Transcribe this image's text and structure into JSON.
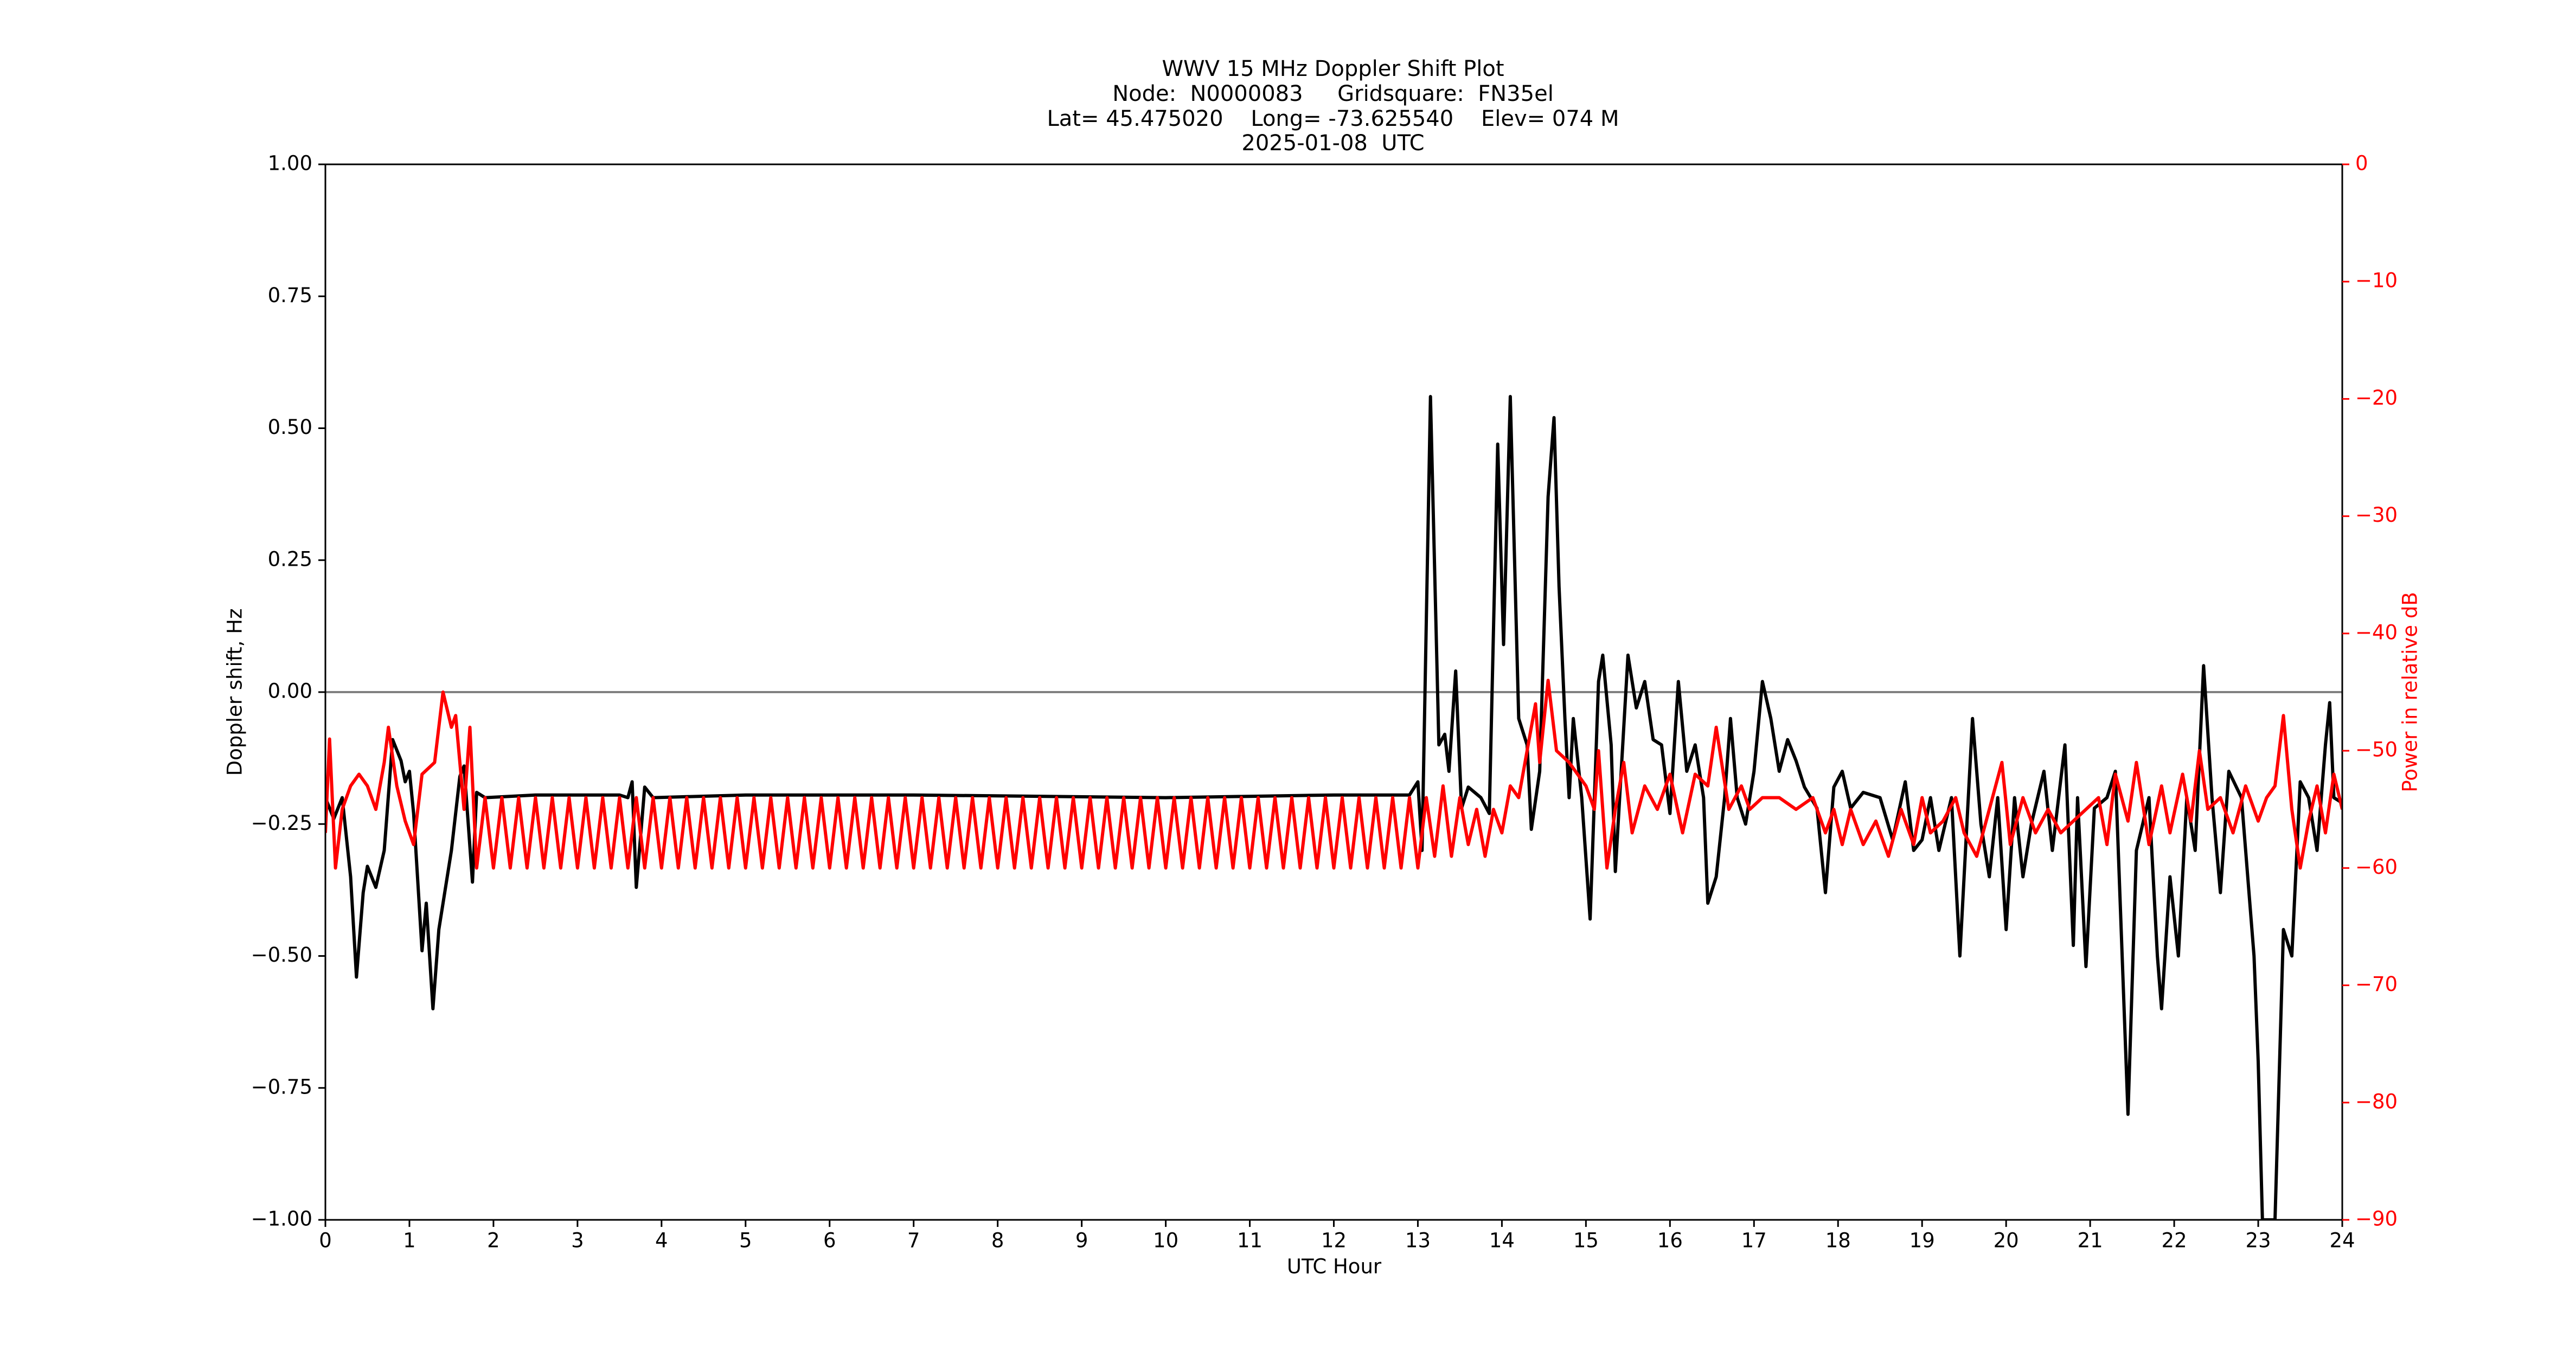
{
  "chart_data": {
    "type": "line",
    "title": "WWV 15 MHz Doppler Shift Plot",
    "subtitle": [
      "Node:  N0000083     Gridsquare:  FN35el",
      "Lat= 45.475020    Long= -73.625540    Elev= 074 M",
      "2025-01-08  UTC"
    ],
    "xlabel": "UTC Hour",
    "ylabel": "Doppler shift, Hz",
    "y2label": "Power in relative dB",
    "xlim": [
      0,
      24
    ],
    "xticks": [
      0,
      1,
      2,
      3,
      4,
      5,
      6,
      7,
      8,
      9,
      10,
      11,
      12,
      13,
      14,
      15,
      16,
      17,
      18,
      19,
      20,
      21,
      22,
      23,
      24
    ],
    "ylim": [
      -1,
      1
    ],
    "yticks": [
      {
        "value": -1,
        "label": "−1.00"
      },
      {
        "value": -0.75,
        "label": "−0.75"
      },
      {
        "value": -0.5,
        "label": "−0.50"
      },
      {
        "value": -0.25,
        "label": "−0.25"
      },
      {
        "value": 0,
        "label": "0.00"
      },
      {
        "value": 0.25,
        "label": "0.25"
      },
      {
        "value": 0.5,
        "label": "0.50"
      },
      {
        "value": 0.75,
        "label": "0.75"
      },
      {
        "value": 1,
        "label": "1.00"
      }
    ],
    "y2lim": [
      -90,
      0
    ],
    "y2ticks": [
      {
        "value": -90,
        "label": "−90"
      },
      {
        "value": -80,
        "label": "−80"
      },
      {
        "value": -70,
        "label": "−70"
      },
      {
        "value": -60,
        "label": "−60"
      },
      {
        "value": -50,
        "label": "−50"
      },
      {
        "value": -40,
        "label": "−40"
      },
      {
        "value": -30,
        "label": "−30"
      },
      {
        "value": -20,
        "label": "−20"
      },
      {
        "value": -10,
        "label": "−10"
      },
      0
    ],
    "y2color": "#ff0000",
    "reference_line": {
      "value": 0,
      "color": "#808080"
    },
    "series": [
      {
        "color": "#000000",
        "axis": "y",
        "x": [
          0,
          0.1,
          0.2,
          0.3,
          0.37,
          0.45,
          0.5,
          0.6,
          0.7,
          0.8,
          0.9,
          0.95,
          1.0,
          1.05,
          1.15,
          1.2,
          1.28,
          1.35,
          1.5,
          1.6,
          1.65,
          1.75,
          1.8,
          1.9,
          2.5,
          3.0,
          3.5,
          3.6,
          3.65,
          3.7,
          3.8,
          3.9,
          5,
          7,
          10,
          12,
          12.9,
          13.0,
          13.05,
          13.15,
          13.25,
          13.32,
          13.37,
          13.45,
          13.52,
          13.6,
          13.75,
          13.85,
          13.95,
          14.02,
          14.1,
          14.2,
          14.3,
          14.35,
          14.45,
          14.55,
          14.62,
          14.68,
          14.75,
          14.8,
          14.85,
          14.95,
          15.05,
          15.15,
          15.2,
          15.3,
          15.35,
          15.5,
          15.6,
          15.7,
          15.8,
          15.9,
          16.0,
          16.1,
          16.2,
          16.3,
          16.4,
          16.45,
          16.55,
          16.65,
          16.72,
          16.8,
          16.9,
          17.0,
          17.1,
          17.2,
          17.3,
          17.4,
          17.5,
          17.6,
          17.75,
          17.85,
          17.95,
          18.05,
          18.15,
          18.3,
          18.5,
          18.65,
          18.8,
          18.9,
          19.0,
          19.1,
          19.2,
          19.35,
          19.45,
          19.6,
          19.7,
          19.8,
          19.9,
          20.0,
          20.1,
          20.2,
          20.3,
          20.45,
          20.55,
          20.7,
          20.8,
          20.85,
          20.95,
          21.05,
          21.2,
          21.3,
          21.45,
          21.55,
          21.7,
          21.8,
          21.85,
          21.95,
          22.05,
          22.15,
          22.25,
          22.35,
          22.45,
          22.55,
          22.65,
          22.8,
          22.95,
          23.0,
          23.05,
          23.2,
          23.3,
          23.4,
          23.5,
          23.6,
          23.7,
          23.8,
          23.85,
          23.9,
          24.0
        ],
        "values": [
          -0.2,
          -0.24,
          -0.2,
          -0.35,
          -0.54,
          -0.38,
          -0.33,
          -0.37,
          -0.3,
          -0.09,
          -0.13,
          -0.17,
          -0.15,
          -0.23,
          -0.49,
          -0.4,
          -0.6,
          -0.45,
          -0.3,
          -0.16,
          -0.14,
          -0.36,
          -0.19,
          -0.2,
          -0.195,
          -0.195,
          -0.195,
          -0.2,
          -0.17,
          -0.37,
          -0.18,
          -0.2,
          -0.195,
          -0.195,
          -0.2,
          -0.195,
          -0.195,
          -0.17,
          -0.3,
          0.56,
          -0.1,
          -0.08,
          -0.15,
          0.04,
          -0.22,
          -0.18,
          -0.2,
          -0.23,
          0.47,
          0.09,
          0.56,
          -0.05,
          -0.1,
          -0.26,
          -0.15,
          0.37,
          0.52,
          0.2,
          -0.05,
          -0.2,
          -0.05,
          -0.2,
          -0.43,
          0.02,
          0.07,
          -0.1,
          -0.34,
          0.07,
          -0.03,
          0.02,
          -0.09,
          -0.1,
          -0.23,
          0.02,
          -0.15,
          -0.1,
          -0.2,
          -0.4,
          -0.35,
          -0.2,
          -0.05,
          -0.2,
          -0.25,
          -0.15,
          0.02,
          -0.05,
          -0.15,
          -0.09,
          -0.13,
          -0.18,
          -0.22,
          -0.38,
          -0.18,
          -0.15,
          -0.22,
          -0.19,
          -0.2,
          -0.28,
          -0.17,
          -0.3,
          -0.28,
          -0.2,
          -0.3,
          -0.2,
          -0.5,
          -0.05,
          -0.25,
          -0.35,
          -0.2,
          -0.45,
          -0.2,
          -0.35,
          -0.25,
          -0.15,
          -0.3,
          -0.1,
          -0.48,
          -0.2,
          -0.52,
          -0.22,
          -0.2,
          -0.15,
          -0.8,
          -0.3,
          -0.2,
          -0.5,
          -0.6,
          -0.35,
          -0.5,
          -0.2,
          -0.3,
          0.05,
          -0.2,
          -0.38,
          -0.15,
          -0.2,
          -0.5,
          -0.7,
          -1.0,
          -1.0,
          -0.45,
          -0.5,
          -0.17,
          -0.2,
          -0.3,
          -0.1,
          -0.02,
          -0.2,
          -0.21
        ]
      },
      {
        "color": "#ff0000",
        "axis": "y2",
        "x": [
          0,
          0.05,
          0.12,
          0.2,
          0.3,
          0.4,
          0.5,
          0.6,
          0.7,
          0.75,
          0.85,
          0.95,
          1.05,
          1.15,
          1.3,
          1.4,
          1.5,
          1.55,
          1.65,
          1.72,
          1.8,
          1.9,
          2.0,
          2.1,
          2.2,
          2.3,
          2.4,
          2.5,
          2.6,
          2.7,
          2.8,
          2.9,
          3.0,
          3.1,
          3.2,
          3.3,
          3.4,
          3.5,
          3.6,
          3.7,
          3.8,
          3.9,
          4.0,
          4.1,
          4.2,
          4.3,
          4.4,
          4.5,
          4.6,
          4.7,
          4.8,
          4.9,
          5.0,
          5.1,
          5.2,
          5.3,
          5.4,
          5.5,
          5.6,
          5.7,
          5.8,
          5.9,
          6.0,
          6.1,
          6.2,
          6.3,
          6.4,
          6.5,
          6.6,
          6.7,
          6.8,
          6.9,
          7.0,
          7.1,
          7.2,
          7.3,
          7.4,
          7.5,
          7.6,
          7.7,
          7.8,
          7.9,
          8.0,
          8.1,
          8.2,
          8.3,
          8.4,
          8.5,
          8.6,
          8.7,
          8.8,
          8.9,
          9.0,
          9.1,
          9.2,
          9.3,
          9.4,
          9.5,
          9.6,
          9.7,
          9.8,
          9.9,
          10.0,
          10.1,
          10.2,
          10.3,
          10.4,
          10.5,
          10.6,
          10.7,
          10.8,
          10.9,
          11.0,
          11.1,
          11.2,
          11.3,
          11.4,
          11.5,
          11.6,
          11.7,
          11.8,
          11.9,
          12.0,
          12.1,
          12.2,
          12.3,
          12.4,
          12.5,
          12.6,
          12.7,
          12.8,
          12.9,
          13.0,
          13.1,
          13.2,
          13.3,
          13.4,
          13.5,
          13.6,
          13.7,
          13.8,
          13.9,
          14.0,
          14.1,
          14.2,
          14.3,
          14.4,
          14.45,
          14.55,
          14.65,
          14.8,
          15.0,
          15.1,
          15.15,
          15.25,
          15.35,
          15.45,
          15.55,
          15.7,
          15.85,
          16.0,
          16.15,
          16.3,
          16.45,
          16.55,
          16.7,
          16.85,
          16.95,
          17.1,
          17.3,
          17.5,
          17.7,
          17.85,
          17.95,
          18.05,
          18.15,
          18.3,
          18.45,
          18.6,
          18.75,
          18.9,
          19.0,
          19.1,
          19.25,
          19.4,
          19.5,
          19.65,
          19.8,
          19.95,
          20.05,
          20.2,
          20.35,
          20.5,
          20.65,
          20.8,
          20.95,
          21.1,
          21.2,
          21.3,
          21.45,
          21.55,
          21.7,
          21.85,
          21.95,
          22.1,
          22.2,
          22.3,
          22.4,
          22.55,
          22.7,
          22.85,
          23.0,
          23.1,
          23.2,
          23.3,
          23.4,
          23.5,
          23.6,
          23.7,
          23.8,
          23.9,
          24.0
        ],
        "values": [
          -57,
          -49,
          -60,
          -55,
          -53,
          -52,
          -53,
          -55,
          -51,
          -48,
          -53,
          -56,
          -58,
          -52,
          -51,
          -45,
          -48,
          -47,
          -55,
          -48,
          -60,
          -54,
          -60,
          -54,
          -60,
          -54,
          -60,
          -54,
          -60,
          -54,
          -60,
          -54,
          -60,
          -54,
          -60,
          -54,
          -60,
          -54,
          -60,
          -54,
          -60,
          -54,
          -60,
          -54,
          -60,
          -54,
          -60,
          -54,
          -60,
          -54,
          -60,
          -54,
          -60,
          -54,
          -60,
          -54,
          -60,
          -54,
          -60,
          -54,
          -60,
          -54,
          -60,
          -54,
          -60,
          -54,
          -60,
          -54,
          -60,
          -54,
          -60,
          -54,
          -60,
          -54,
          -60,
          -54,
          -60,
          -54,
          -60,
          -54,
          -60,
          -54,
          -60,
          -54,
          -60,
          -54,
          -60,
          -54,
          -60,
          -54,
          -60,
          -54,
          -60,
          -54,
          -60,
          -54,
          -60,
          -54,
          -60,
          -54,
          -60,
          -54,
          -60,
          -54,
          -60,
          -54,
          -60,
          -54,
          -60,
          -54,
          -60,
          -54,
          -60,
          -54,
          -60,
          -54,
          -60,
          -54,
          -60,
          -54,
          -60,
          -54,
          -60,
          -54,
          -60,
          -54,
          -60,
          -54,
          -60,
          -54,
          -60,
          -54,
          -60,
          -54,
          -59,
          -53,
          -59,
          -54,
          -58,
          -55,
          -59,
          -55,
          -57,
          -53,
          -54,
          -50,
          -46,
          -51,
          -44,
          -50,
          -51,
          -53,
          -55,
          -50,
          -60,
          -55,
          -51,
          -57,
          -53,
          -55,
          -52,
          -57,
          -52,
          -53,
          -48,
          -55,
          -53,
          -55,
          -54,
          -54,
          -55,
          -54,
          -57,
          -55,
          -58,
          -55,
          -58,
          -56,
          -59,
          -55,
          -58,
          -54,
          -57,
          -56,
          -54,
          -57,
          -59,
          -55,
          -51,
          -58,
          -54,
          -57,
          -55,
          -57,
          -56,
          -55,
          -54,
          -58,
          -52,
          -56,
          -51,
          -58,
          -53,
          -57,
          -52,
          -56,
          -50,
          -55,
          -54,
          -57,
          -53,
          -56,
          -54,
          -53,
          -47,
          -55,
          -60,
          -56,
          -53,
          -57,
          -52,
          -55
        ]
      }
    ]
  }
}
